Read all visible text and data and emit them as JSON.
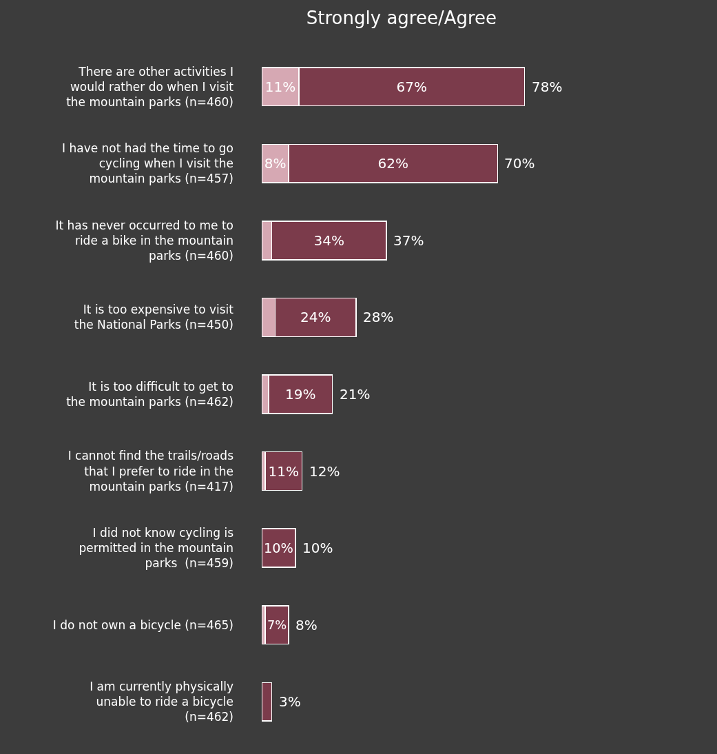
{
  "chart_data": {
    "type": "bar",
    "orientation": "horizontal",
    "stacked": true,
    "title": "Strongly agree/Agree",
    "categories": [
      "There are other activities I would rather do when I visit the mountain parks (n=460)",
      "I have not had the time to go cycling when I visit the mountain parks (n=457)",
      "It has never occurred to me to ride a bike in the mountain parks (n=460)",
      "It is too expensive to visit the National Parks (n=450)",
      "It is too difficult to get to the mountain parks (n=462)",
      "I cannot find the trails/roads that I prefer to ride in the mountain parks (n=417)",
      "I did not know cycling is permitted in the mountain parks  (n=459)",
      "I do not own a bicycle (n=465)",
      "I am currently physically unable to ride a bicycle (n=462)"
    ],
    "series": [
      {
        "color": "#d6a8b3",
        "values": [
          11,
          8,
          3,
          4,
          2,
          1,
          0,
          1,
          0
        ],
        "value_labels": [
          "11%",
          "8%",
          null,
          null,
          null,
          null,
          null,
          null,
          null
        ]
      },
      {
        "color": "#7b3b4b",
        "values": [
          67,
          62,
          34,
          24,
          19,
          11,
          10,
          7,
          3
        ],
        "value_labels": [
          "67%",
          "62%",
          "34%",
          "24%",
          "19%",
          "11%",
          "10%",
          "7%",
          null
        ]
      }
    ],
    "totals": [
      "78%",
      "70%",
      "37%",
      "28%",
      "21%",
      "12%",
      "10%",
      "8%",
      "3%"
    ]
  }
}
